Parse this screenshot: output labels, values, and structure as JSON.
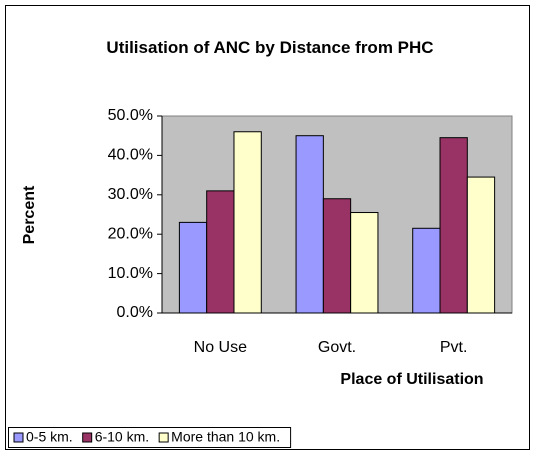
{
  "chart_data": {
    "type": "bar",
    "title": "Utilisation of ANC by Distance from PHC",
    "x_label": "Place of Utilisation",
    "y_label": "Percent",
    "categories": [
      "No Use",
      "Govt.",
      "Pvt."
    ],
    "series": [
      {
        "name": "0-5 km.",
        "color": "#9999ff",
        "values": [
          23,
          45,
          21.5
        ]
      },
      {
        "name": "6-10 km.",
        "color": "#993366",
        "values": [
          31,
          29,
          44.5
        ]
      },
      {
        "name": "More than 10 km.",
        "color": "#ffffcc",
        "values": [
          46,
          25.5,
          34.5
        ]
      }
    ],
    "ylim": [
      0,
      50
    ],
    "yticks": [
      {
        "value": 0,
        "label": "0.0%"
      },
      {
        "value": 10,
        "label": "10.0%"
      },
      {
        "value": 20,
        "label": "20.0%"
      },
      {
        "value": 30,
        "label": "30.0%"
      },
      {
        "value": 40,
        "label": "40.0%"
      },
      {
        "value": 50,
        "label": "50.0%"
      }
    ],
    "plot_background": "#c0c0c0",
    "legend": "bottom"
  }
}
